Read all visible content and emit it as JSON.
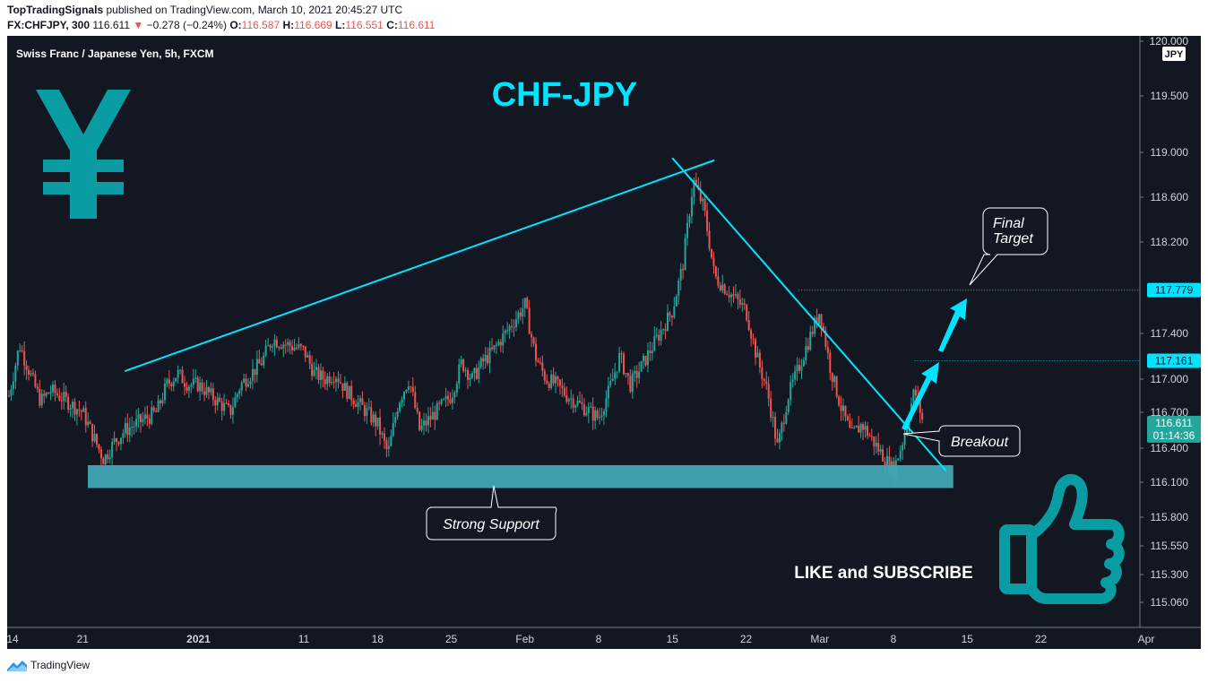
{
  "header": {
    "publisher": "TopTradingSignals",
    "published_text": "published on TradingView.com, March 10, 2021 20:45:27 UTC",
    "symbol": "FX:CHFJPY, 300",
    "last": "116.611",
    "change_arrow": "▼",
    "change": "−0.278 (−0.24%)",
    "open_label": "O:",
    "open": "116.587",
    "high_label": "H:",
    "high": "116.669",
    "low_label": "L:",
    "low": "116.551",
    "close_label": "C:",
    "close": "116.611"
  },
  "chart": {
    "legend": "Swiss Franc / Japanese Yen, 5h, FXCM",
    "title": "CHF-JPY",
    "currency_badge": "JPY",
    "yen_symbol": "¥",
    "price_label": "116.611",
    "countdown": "01:14:36",
    "level_labels": [
      "117.779",
      "117.161"
    ],
    "annotations": {
      "final_target": "Final\nTarget",
      "breakout": "Breakout",
      "support": "Strong Support",
      "cta": "LIKE and SUBSCRIBE"
    },
    "colors": {
      "background": "#131722",
      "up": "#26a69a",
      "down": "#ef5350",
      "cyan": "#00e5ff",
      "support_zone": "#3fa7b5",
      "icon_teal": "#0a9ca3"
    }
  },
  "chart_data": {
    "type": "candlestick",
    "symbol": "CHFJPY",
    "timeframe": "5h",
    "y_ticks": [
      "120.000",
      "119.500",
      "119.000",
      "118.600",
      "118.200",
      "117.400",
      "117.000",
      "116.700",
      "116.400",
      "116.100",
      "115.800",
      "115.550",
      "115.300",
      "115.060"
    ],
    "x_ticks": [
      "14",
      "21",
      "2021",
      "11",
      "18",
      "25",
      "Feb",
      "8",
      "15",
      "22",
      "Mar",
      "8",
      "15",
      "22",
      "Apr"
    ],
    "ylim": [
      114.8,
      120.05
    ],
    "trend_lines": [
      {
        "name": "rising resistance",
        "from": [
          "2020-12-25",
          117.07
        ],
        "to": [
          "2021-02-19",
          118.93
        ]
      },
      {
        "name": "falling trendline",
        "from": [
          "2021-02-15",
          118.95
        ],
        "to": [
          "2021-03-13",
          116.2
        ]
      }
    ],
    "support_zone": [
      116.05,
      116.25
    ],
    "levels": [
      117.779,
      117.161
    ],
    "path": [
      [
        "2020-12-14",
        116.85
      ],
      [
        "2020-12-15",
        117.3
      ],
      [
        "2020-12-16",
        117.05
      ],
      [
        "2020-12-17",
        116.8
      ],
      [
        "2020-12-18",
        116.9
      ],
      [
        "2020-12-21",
        116.7
      ],
      [
        "2020-12-22",
        116.5
      ],
      [
        "2020-12-23",
        116.3
      ],
      [
        "2020-12-24",
        116.45
      ],
      [
        "2020-12-25",
        116.55
      ],
      [
        "2020-12-28",
        116.7
      ],
      [
        "2020-12-29",
        116.95
      ],
      [
        "2020-12-30",
        117.05
      ],
      [
        "2020-12-31",
        116.95
      ],
      [
        "2021-01-01",
        116.95
      ],
      [
        "2021-01-04",
        116.7
      ],
      [
        "2021-01-05",
        116.95
      ],
      [
        "2021-01-06",
        117.05
      ],
      [
        "2021-01-07",
        117.15
      ],
      [
        "2021-01-08",
        117.35
      ],
      [
        "2021-01-11",
        117.25
      ],
      [
        "2021-01-12",
        117.05
      ],
      [
        "2021-01-13",
        117.0
      ],
      [
        "2021-01-14",
        117.05
      ],
      [
        "2021-01-15",
        116.9
      ],
      [
        "2021-01-18",
        116.6
      ],
      [
        "2021-01-19",
        116.35
      ],
      [
        "2021-01-20",
        116.8
      ],
      [
        "2021-01-21",
        117.0
      ],
      [
        "2021-01-22",
        116.55
      ],
      [
        "2021-01-25",
        116.85
      ],
      [
        "2021-01-26",
        117.15
      ],
      [
        "2021-01-27",
        117.0
      ],
      [
        "2021-01-28",
        117.15
      ],
      [
        "2021-01-29",
        117.25
      ],
      [
        "2021-02-01",
        117.65
      ],
      [
        "2021-02-02",
        117.2
      ],
      [
        "2021-02-03",
        117.0
      ],
      [
        "2021-02-04",
        116.95
      ],
      [
        "2021-02-05",
        116.85
      ],
      [
        "2021-02-08",
        116.65
      ],
      [
        "2021-02-09",
        116.9
      ],
      [
        "2021-02-10",
        117.2
      ],
      [
        "2021-02-11",
        116.95
      ],
      [
        "2021-02-12",
        117.1
      ],
      [
        "2021-02-15",
        117.6
      ],
      [
        "2021-02-16",
        118.0
      ],
      [
        "2021-02-17",
        118.75
      ],
      [
        "2021-02-18",
        118.5
      ],
      [
        "2021-02-19",
        117.9
      ],
      [
        "2021-02-22",
        117.6
      ],
      [
        "2021-02-23",
        117.2
      ],
      [
        "2021-02-24",
        116.9
      ],
      [
        "2021-02-25",
        116.4
      ],
      [
        "2021-02-26",
        116.85
      ],
      [
        "2021-03-01",
        117.6
      ],
      [
        "2021-03-02",
        117.1
      ],
      [
        "2021-03-03",
        116.75
      ],
      [
        "2021-03-04",
        116.5
      ],
      [
        "2021-03-05",
        116.6
      ],
      [
        "2021-03-08",
        116.2
      ],
      [
        "2021-03-09",
        116.5
      ],
      [
        "2021-03-10",
        116.9
      ],
      [
        "2021-03-10T20",
        116.611
      ]
    ]
  }
}
